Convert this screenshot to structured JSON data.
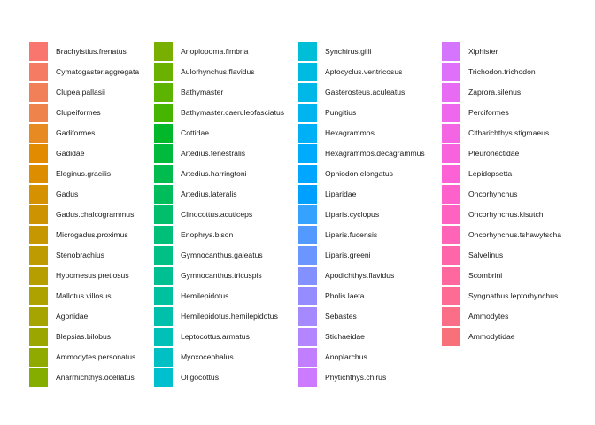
{
  "chart_data": {
    "type": "legend",
    "columns": [
      [
        {
          "label": "Brachyistius.frenatus",
          "color": "#F8766D"
        },
        {
          "label": "Cymatogaster.aggregata",
          "color": "#F57C62"
        },
        {
          "label": "Clupea.pallasii",
          "color": "#F17F57"
        },
        {
          "label": "Clupeiformes",
          "color": "#EE844B"
        },
        {
          "label": "Gadiformes",
          "color": "#E88A22"
        },
        {
          "label": "Gadidae",
          "color": "#E28B00"
        },
        {
          "label": "Eleginus.gracilis",
          "color": "#DC8E00"
        },
        {
          "label": "Gadus",
          "color": "#D69100"
        },
        {
          "label": "Gadus.chalcogrammus",
          "color": "#CE9300"
        },
        {
          "label": "Microgadus.proximus",
          "color": "#C69700"
        },
        {
          "label": "Stenobrachius",
          "color": "#BE9B00"
        },
        {
          "label": "Hypomesus.pretiosus",
          "color": "#B69E00"
        },
        {
          "label": "Mallotus.villosus",
          "color": "#AEA200"
        },
        {
          "label": "Agonidae",
          "color": "#A5A400"
        },
        {
          "label": "Blepsias.bilobus",
          "color": "#9BA700"
        },
        {
          "label": "Ammodytes.personatus",
          "color": "#90AA00"
        },
        {
          "label": "Anarrhichthys.ocellatus",
          "color": "#85AD00"
        }
      ],
      [
        {
          "label": "Anoplopoma.fimbria",
          "color": "#79AF00"
        },
        {
          "label": "Aulorhynchus.flavidus",
          "color": "#6BB100"
        },
        {
          "label": "Bathymaster",
          "color": "#5CB400"
        },
        {
          "label": "Bathymaster.caeruleofasciatus",
          "color": "#45B500"
        },
        {
          "label": "Cottidae",
          "color": "#00B829"
        },
        {
          "label": "Artedius.fenestralis",
          "color": "#00BA3D"
        },
        {
          "label": "Artedius.harringtoni",
          "color": "#00BB4E"
        },
        {
          "label": "Artedius.lateralis",
          "color": "#00BD5C"
        },
        {
          "label": "Clinocottus.acuticeps",
          "color": "#00BE6B"
        },
        {
          "label": "Enophrys.bison",
          "color": "#00BF78"
        },
        {
          "label": "Gymnocanthus.galeatus",
          "color": "#00C085"
        },
        {
          "label": "Gymnocanthus.tricuspis",
          "color": "#00C092"
        },
        {
          "label": "Hemilepidotus",
          "color": "#00C19F"
        },
        {
          "label": "Hemilepidotus.hemilepidotus",
          "color": "#00C0AB"
        },
        {
          "label": "Leptocottus.armatus",
          "color": "#00C0B7"
        },
        {
          "label": "Myoxocephalus",
          "color": "#00C0C3"
        },
        {
          "label": "Oligocottus",
          "color": "#00BFCE"
        }
      ],
      [
        {
          "label": "Synchirus.gilli",
          "color": "#00BDD8"
        },
        {
          "label": "Aptocyclus.ventricosus",
          "color": "#00BBE1"
        },
        {
          "label": "Gasterosteus.aculeatus",
          "color": "#00B8E8"
        },
        {
          "label": "Pungitius",
          "color": "#00B4EF"
        },
        {
          "label": "Hexagrammos",
          "color": "#00B0F6"
        },
        {
          "label": "Hexagrammos.decagrammus",
          "color": "#00ABFB"
        },
        {
          "label": "Ophiodon.elongatus",
          "color": "#00A6FF"
        },
        {
          "label": "Liparidae",
          "color": "#00A0FF"
        },
        {
          "label": "Liparis.cyclopus",
          "color": "#35A2FF"
        },
        {
          "label": "Liparis.fucensis",
          "color": "#529AFF"
        },
        {
          "label": "Liparis.greeni",
          "color": "#6C96FF"
        },
        {
          "label": "Apodichthys.flavidus",
          "color": "#8391FF"
        },
        {
          "label": "Pholis.laeta",
          "color": "#958DFF"
        },
        {
          "label": "Sebastes",
          "color": "#A589FF"
        },
        {
          "label": "Stichaeidae",
          "color": "#B385FF"
        },
        {
          "label": "Anoplarchus",
          "color": "#C17FFF"
        },
        {
          "label": "Phytichthys.chirus",
          "color": "#CC7AFF"
        }
      ],
      [
        {
          "label": "Xiphister",
          "color": "#D575FE"
        },
        {
          "label": "Trichodon.trichodon",
          "color": "#DF70F9"
        },
        {
          "label": "Zaprora.silenus",
          "color": "#E76BF3"
        },
        {
          "label": "Perciformes",
          "color": "#EE67EC"
        },
        {
          "label": "Citharichthys.stigmaeus",
          "color": "#F465E4"
        },
        {
          "label": "Pleuronectidae",
          "color": "#F962DD"
        },
        {
          "label": "Lepidopsetta",
          "color": "#FC61D5"
        },
        {
          "label": "Oncorhynchus",
          "color": "#FF61CC"
        },
        {
          "label": "Oncorhynchus.kisutch",
          "color": "#FF62C1"
        },
        {
          "label": "Oncorhynchus.tshawytscha",
          "color": "#FF64B6"
        },
        {
          "label": "Salvelinus",
          "color": "#FF66AA"
        },
        {
          "label": "Scombrini",
          "color": "#FF689F"
        },
        {
          "label": "Syngnathus.leptorhynchus",
          "color": "#FE6B94"
        },
        {
          "label": "Ammodytes",
          "color": "#FB6E87"
        },
        {
          "label": "Ammodytidae",
          "color": "#F8717A"
        }
      ]
    ]
  }
}
